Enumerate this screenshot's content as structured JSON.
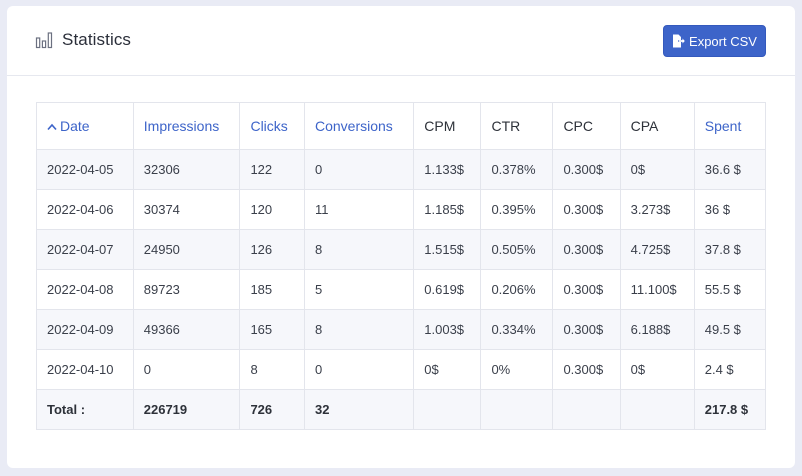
{
  "header": {
    "title": "Statistics",
    "export_label": "Export CSV"
  },
  "colors": {
    "accent": "#3d64c9",
    "stripe": "#f6f7fb",
    "background": "#e9ebf5"
  },
  "table": {
    "sort_indicator": "^",
    "columns": [
      {
        "label": "Date",
        "sortable": true,
        "sorted": "asc"
      },
      {
        "label": "Impressions",
        "sortable": true
      },
      {
        "label": "Clicks",
        "sortable": true
      },
      {
        "label": "Conversions",
        "sortable": true
      },
      {
        "label": "CPM",
        "sortable": false
      },
      {
        "label": "CTR",
        "sortable": false
      },
      {
        "label": "CPC",
        "sortable": false
      },
      {
        "label": "CPA",
        "sortable": false
      },
      {
        "label": "Spent",
        "sortable": true
      }
    ],
    "rows": [
      [
        "2022-04-05",
        "32306",
        "122",
        "0",
        "1.133$",
        "0.378%",
        "0.300$",
        "0$",
        "36.6 $"
      ],
      [
        "2022-04-06",
        "30374",
        "120",
        "11",
        "1.185$",
        "0.395%",
        "0.300$",
        "3.273$",
        "36 $"
      ],
      [
        "2022-04-07",
        "24950",
        "126",
        "8",
        "1.515$",
        "0.505%",
        "0.300$",
        "4.725$",
        "37.8 $"
      ],
      [
        "2022-04-08",
        "89723",
        "185",
        "5",
        "0.619$",
        "0.206%",
        "0.300$",
        "11.100$",
        "55.5 $"
      ],
      [
        "2022-04-09",
        "49366",
        "165",
        "8",
        "1.003$",
        "0.334%",
        "0.300$",
        "6.188$",
        "49.5 $"
      ],
      [
        "2022-04-10",
        "0",
        "8",
        "0",
        "0$",
        "0%",
        "0.300$",
        "0$",
        "2.4 $"
      ]
    ],
    "total": [
      "Total :",
      "226719",
      "726",
      "32",
      "",
      "",
      "",
      "",
      "217.8 $"
    ]
  }
}
